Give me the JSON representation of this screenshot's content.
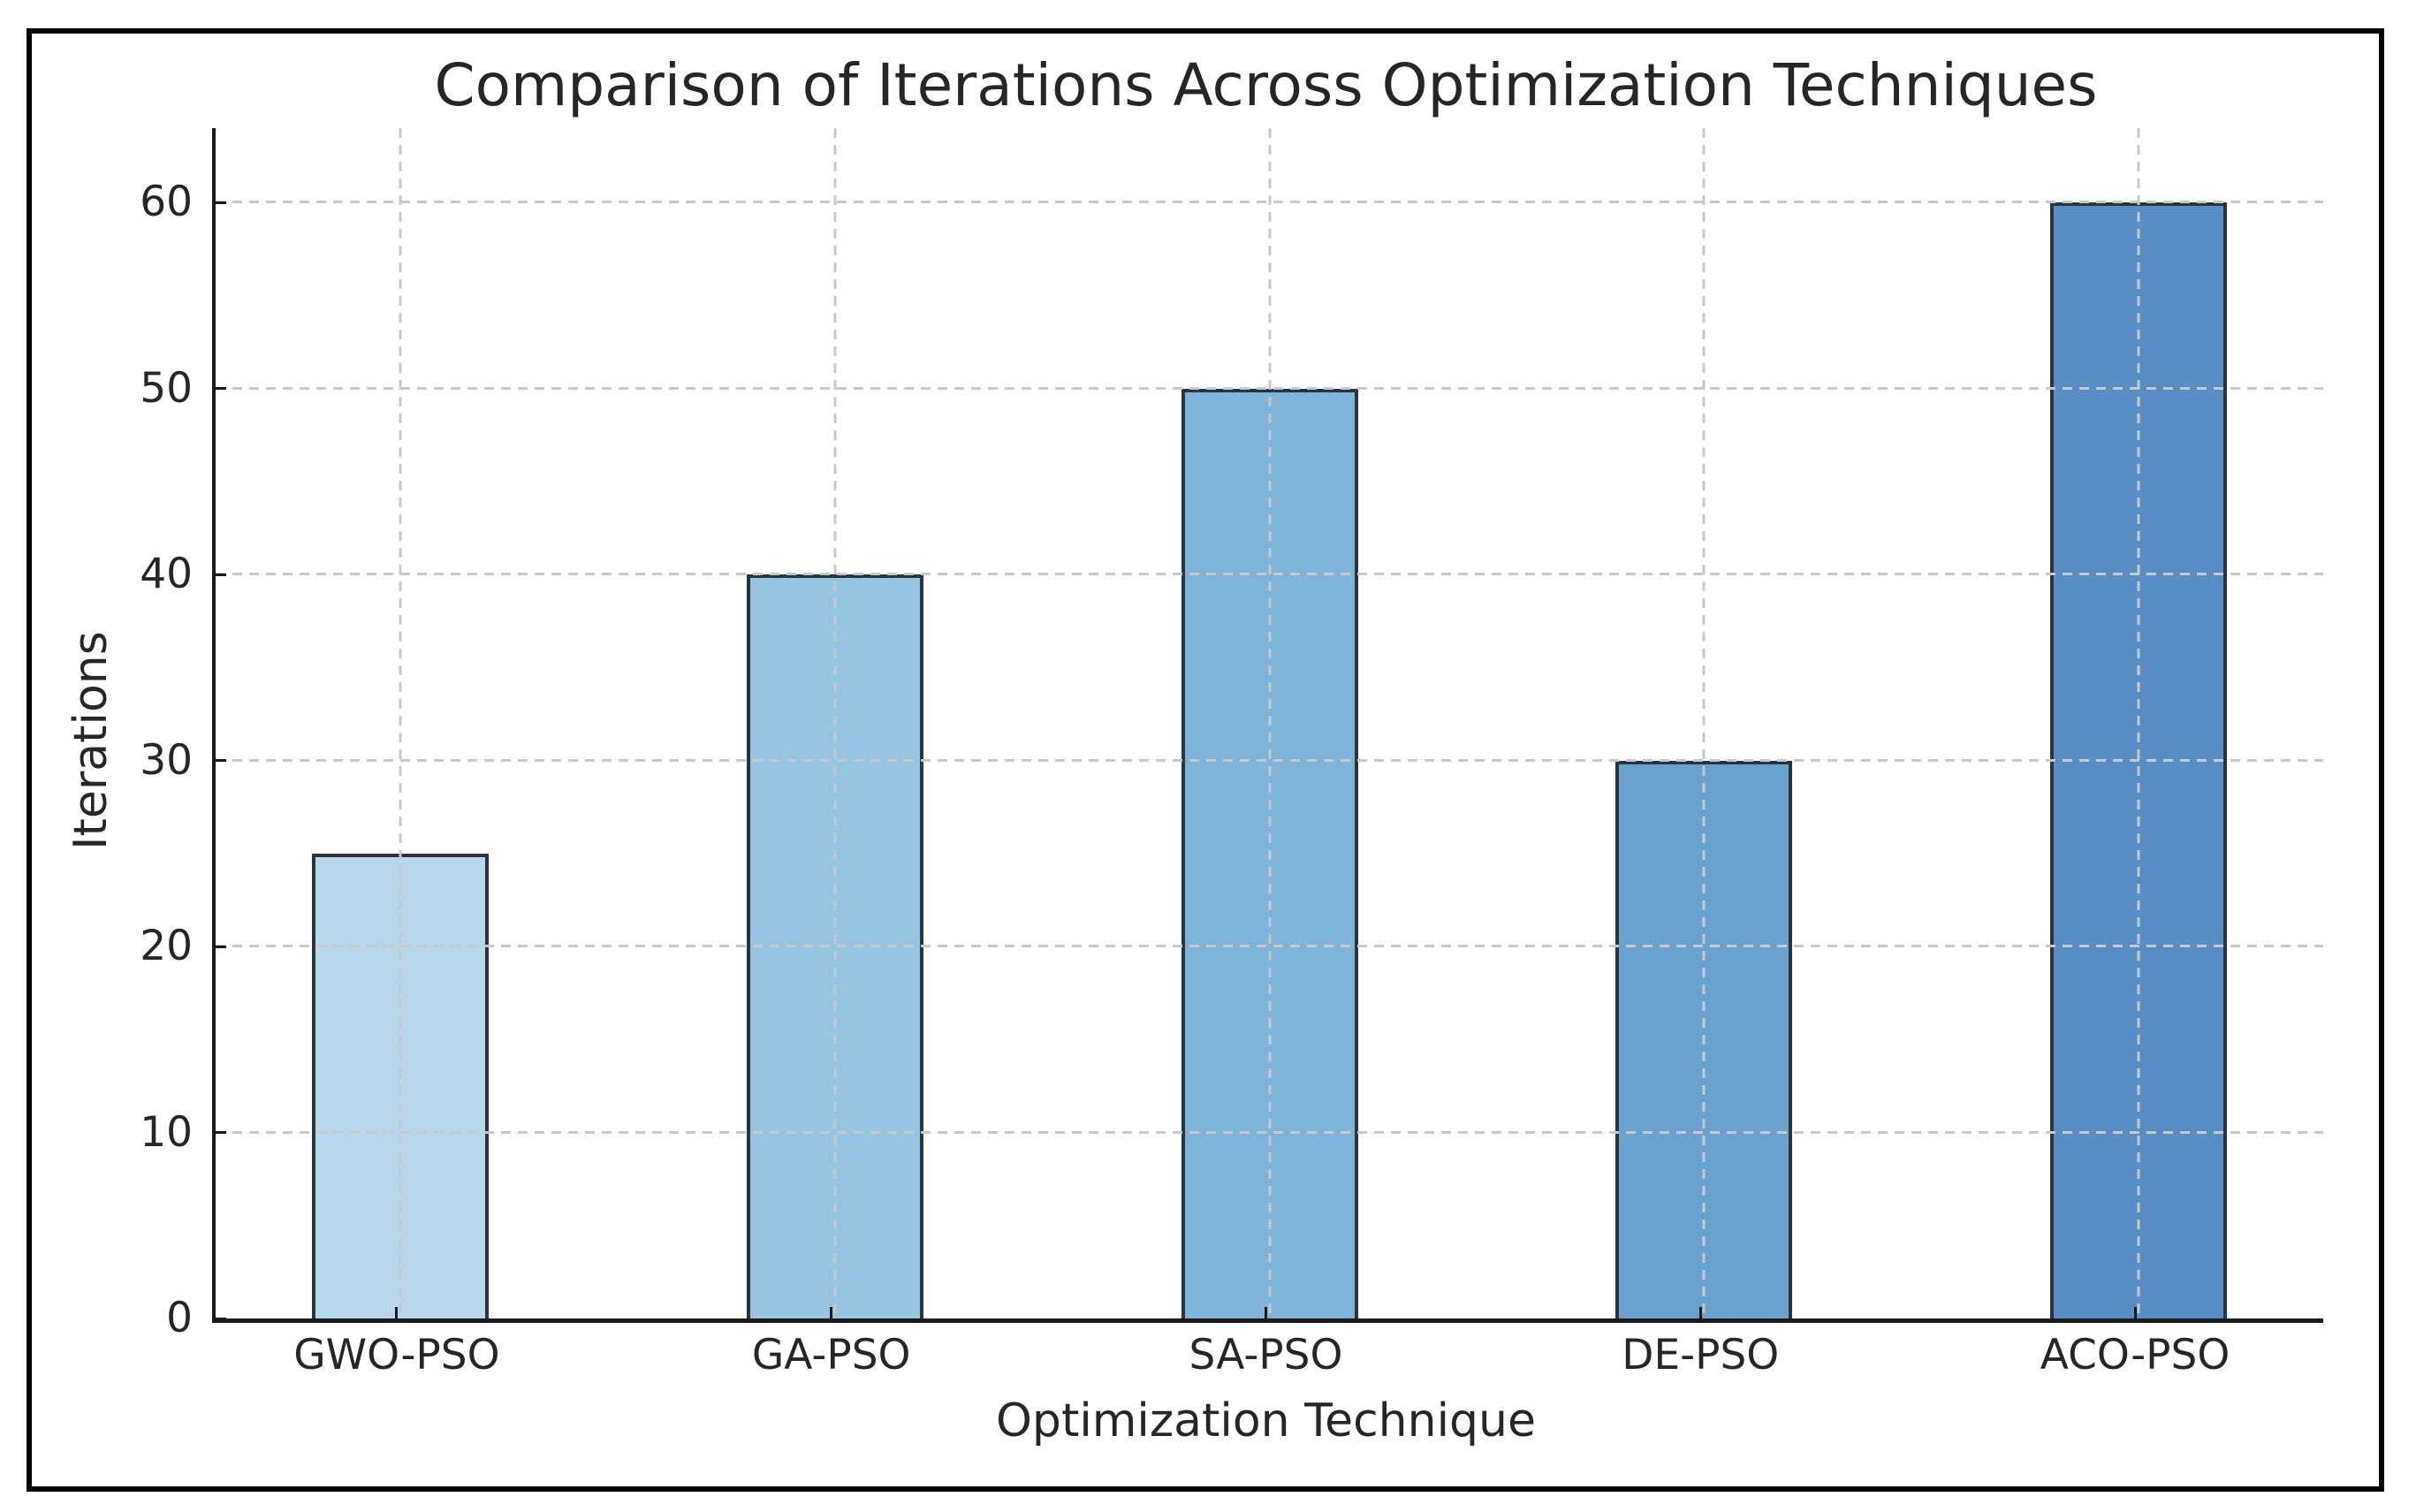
{
  "chart_data": {
    "type": "bar",
    "title": "Comparison of Iterations Across Optimization Techniques",
    "xlabel": "Optimization Technique",
    "ylabel": "Iterations",
    "categories": [
      "GWO-PSO",
      "GA-PSO",
      "SA-PSO",
      "DE-PSO",
      "ACO-PSO"
    ],
    "values": [
      25,
      40,
      50,
      30,
      60
    ],
    "yticks": [
      0,
      10,
      20,
      30,
      40,
      50,
      60
    ],
    "ylim": [
      0,
      64
    ],
    "grid": "dashed, horizontal and vertical, drawn above bars",
    "legend": "none",
    "bar_colors": [
      "#b9d7ea",
      "#96c5e1",
      "#7fb3d9",
      "#69a2cf",
      "#588ec4"
    ],
    "bar_edge_color": "#2b343c",
    "grid_color": "#c6c9cc",
    "text_color": "#262626",
    "spine_color": "#1a1a1a",
    "frame_color": "#000000",
    "background_color": "#ffffff"
  }
}
